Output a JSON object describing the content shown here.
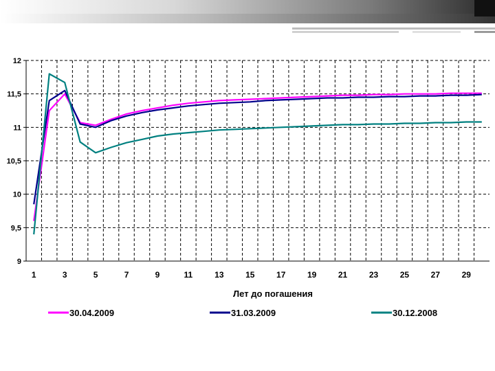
{
  "chart_data": {
    "type": "line",
    "xlabel": "Лет до погашения",
    "ylabel": "",
    "xlim": [
      1,
      30
    ],
    "ylim": [
      9,
      12
    ],
    "y_ticks": [
      "9",
      "9,5",
      "10",
      "10,5",
      "11",
      "11,5",
      "12"
    ],
    "y_tick_values": [
      9,
      9.5,
      10,
      10.5,
      11,
      11.5,
      12
    ],
    "x_ticks": [
      "1",
      "3",
      "5",
      "7",
      "9",
      "11",
      "13",
      "15",
      "17",
      "19",
      "21",
      "23",
      "25",
      "27",
      "29"
    ],
    "x_tick_values": [
      1,
      3,
      5,
      7,
      9,
      11,
      13,
      15,
      17,
      19,
      21,
      23,
      25,
      27,
      29
    ],
    "grid": true,
    "legend_position": "bottom",
    "series": [
      {
        "name": "30.04.2009",
        "color": "#ff00ff",
        "x": [
          1,
          2,
          3,
          4,
          5,
          6,
          7,
          8,
          9,
          10,
          11,
          12,
          13,
          14,
          15,
          16,
          17,
          18,
          19,
          20,
          21,
          22,
          23,
          24,
          25,
          26,
          27,
          28,
          29,
          30
        ],
        "y": [
          9.6,
          11.25,
          11.5,
          11.07,
          11.03,
          11.12,
          11.2,
          11.25,
          11.29,
          11.33,
          11.36,
          11.38,
          11.4,
          11.41,
          11.42,
          11.43,
          11.44,
          11.45,
          11.46,
          11.47,
          11.48,
          11.48,
          11.49,
          11.49,
          11.5,
          11.5,
          11.5,
          11.51,
          11.51,
          11.51
        ]
      },
      {
        "name": "31.03.2009",
        "color": "#00008b",
        "x": [
          1,
          2,
          3,
          4,
          5,
          6,
          7,
          8,
          9,
          10,
          11,
          12,
          13,
          14,
          15,
          16,
          17,
          18,
          19,
          20,
          21,
          22,
          23,
          24,
          25,
          26,
          27,
          28,
          29,
          30
        ],
        "y": [
          9.85,
          11.4,
          11.55,
          11.05,
          11.0,
          11.1,
          11.17,
          11.22,
          11.26,
          11.29,
          11.32,
          11.34,
          11.36,
          11.37,
          11.38,
          11.4,
          11.41,
          11.42,
          11.43,
          11.44,
          11.44,
          11.45,
          11.45,
          11.46,
          11.46,
          11.47,
          11.47,
          11.48,
          11.48,
          11.49
        ]
      },
      {
        "name": "30.12.2008",
        "color": "#008080",
        "x": [
          1,
          2,
          3,
          4,
          5,
          6,
          7,
          8,
          9,
          10,
          11,
          12,
          13,
          14,
          15,
          16,
          17,
          18,
          19,
          20,
          21,
          22,
          23,
          24,
          25,
          26,
          27,
          28,
          29,
          30
        ],
        "y": [
          9.4,
          11.8,
          11.67,
          10.78,
          10.62,
          10.7,
          10.77,
          10.82,
          10.87,
          10.9,
          10.92,
          10.94,
          10.96,
          10.97,
          10.98,
          10.99,
          11.0,
          11.01,
          11.02,
          11.03,
          11.04,
          11.04,
          11.05,
          11.05,
          11.06,
          11.06,
          11.07,
          11.07,
          11.08,
          11.08
        ]
      }
    ]
  },
  "theme": {
    "grid_color": "#000000",
    "top_accent_color": "#1a1a1a"
  }
}
